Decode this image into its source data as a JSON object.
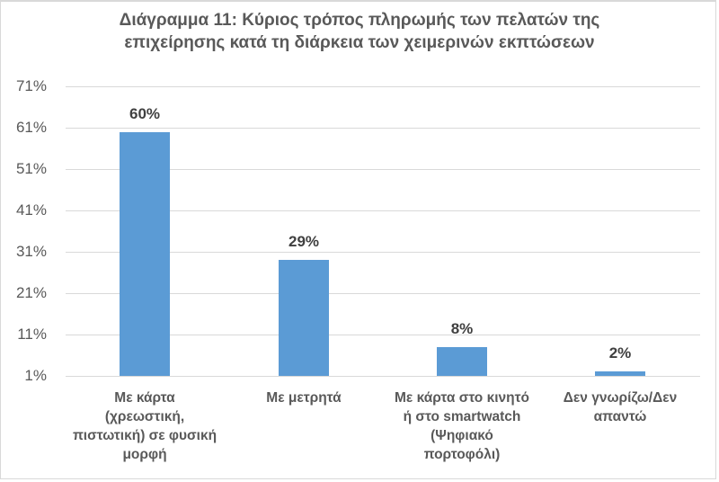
{
  "chart_data": {
    "type": "bar",
    "title": "Διάγραμμα 11: Κύριος τρόπος πληρωμής των πελατών της επιχείρησης κατά τη διάρκεια των χειμερινών εκπτώσεων",
    "title_lines": [
      "Διάγραμμα 11: Κύριος τρόπος πληρωμής των πελατών της",
      "επιχείρησης κατά τη διάρκεια των χειμερινών εκπτώσεων"
    ],
    "categories": [
      "Με κάρτα (χρεωστική, πιστωτική) σε φυσική μορφή",
      "Με μετρητά",
      "Με κάρτα στο κινητό ή στο smartwatch (Ψηφιακό πορτοφόλι)",
      "Δεν γνωρίζω/Δεν απαντώ"
    ],
    "category_lines": [
      [
        "Με κάρτα",
        "(χρεωστική,",
        "πιστωτική) σε φυσική",
        "μορφή"
      ],
      [
        "Με μετρητά"
      ],
      [
        "Με κάρτα στο κινητό",
        "ή στο smartwatch",
        "(Ψηφιακό",
        "πορτοφόλι)"
      ],
      [
        "Δεν γνωρίζω/Δεν",
        "απαντώ"
      ]
    ],
    "values": [
      60,
      29,
      8,
      2
    ],
    "data_labels": [
      "60%",
      "29%",
      "8%",
      "2%"
    ],
    "xlabel": "",
    "ylabel": "",
    "ylim": [
      1,
      71
    ],
    "yticks": [
      "71%",
      "61%",
      "51%",
      "41%",
      "31%",
      "21%",
      "11%",
      "1%"
    ],
    "grid": true,
    "legend": null,
    "bar_color": "#5b9bd5"
  }
}
